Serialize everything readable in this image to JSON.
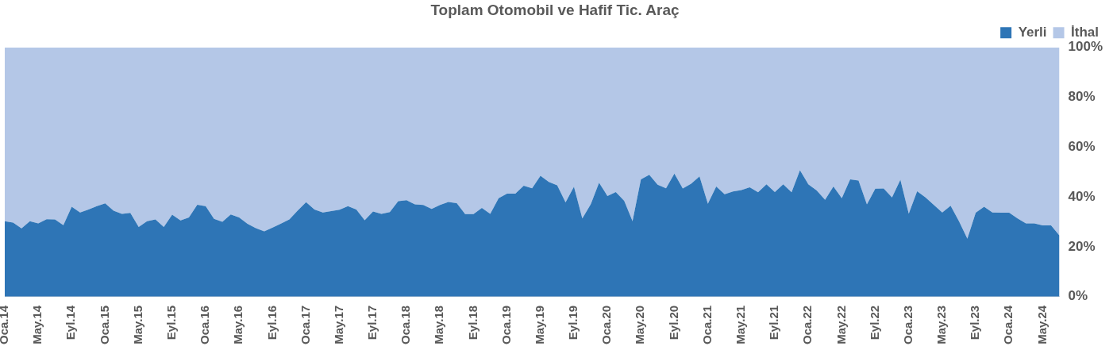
{
  "chart_data": {
    "type": "area",
    "title": "Toplam Otomobil ve Hafif Tic. Araç",
    "stacked": true,
    "legend": "top right",
    "grid": false,
    "marker": "none",
    "ylim": [
      0,
      100
    ],
    "yticks": [
      {
        "value": 0,
        "label": "0%"
      },
      {
        "value": 20,
        "label": "20%"
      },
      {
        "value": 40,
        "label": "40%"
      },
      {
        "value": 60,
        "label": "60%"
      },
      {
        "value": 80,
        "label": "80%"
      },
      {
        "value": 100,
        "label": "100%"
      }
    ],
    "categories": [
      "Oca.14",
      null,
      null,
      null,
      "May.14",
      null,
      null,
      null,
      "Eyl.14",
      null,
      null,
      null,
      "Oca.15",
      null,
      null,
      null,
      "May.15",
      null,
      null,
      null,
      "Eyl.15",
      null,
      null,
      null,
      "Oca.16",
      null,
      null,
      null,
      "May.16",
      null,
      null,
      null,
      "Eyl.16",
      null,
      null,
      null,
      "Oca.17",
      null,
      null,
      null,
      "May.17",
      null,
      null,
      null,
      "Eyl.17",
      null,
      null,
      null,
      "Oca.18",
      null,
      null,
      null,
      "May.18",
      null,
      null,
      null,
      "Eyl.18",
      null,
      null,
      null,
      "Oca.19",
      null,
      null,
      null,
      "May.19",
      null,
      null,
      null,
      "Eyl.19",
      null,
      null,
      null,
      "Oca.20",
      null,
      null,
      null,
      "May.20",
      null,
      null,
      null,
      "Eyl.20",
      null,
      null,
      null,
      "Oca.21",
      null,
      null,
      null,
      "May.21",
      null,
      null,
      null,
      "Eyl.21",
      null,
      null,
      null,
      "Oca.22",
      null,
      null,
      null,
      "May.22",
      null,
      null,
      null,
      "Eyl.22",
      null,
      null,
      null,
      "Oca.23",
      null,
      null,
      null,
      "May.23",
      null,
      null,
      null,
      "Eyl.23",
      null,
      null,
      null,
      "Oca.24",
      null,
      null,
      null,
      "May.24",
      null,
      null
    ],
    "series": [
      {
        "name": "Yerli",
        "color": "#2e75b6",
        "values": [
          30.3,
          29.7,
          27.4,
          30.3,
          29.4,
          31.1,
          31,
          28.7,
          36.1,
          33.8,
          35,
          36.3,
          37.4,
          34.5,
          33.2,
          33.6,
          28,
          30.3,
          31,
          28,
          32.9,
          30.6,
          31.8,
          36.9,
          36.3,
          31.2,
          30,
          33,
          31.8,
          29.2,
          27.5,
          26.2,
          27.7,
          29.3,
          31,
          34.6,
          37.9,
          35,
          33.8,
          34.3,
          34.9,
          36.3,
          35,
          30.7,
          34.2,
          33.2,
          33.9,
          38.3,
          38.7,
          37,
          36.8,
          35.2,
          36.8,
          38,
          37.5,
          33.1,
          33.1,
          35.6,
          33.2,
          39.5,
          41.3,
          41.3,
          44.5,
          43.5,
          48.5,
          46,
          44.7,
          37.8,
          44.1,
          31.4,
          37,
          45.7,
          40.4,
          42,
          38.5,
          30.3,
          47.1,
          48.9,
          44.9,
          43.5,
          49.4,
          43.4,
          45.3,
          48.3,
          37.3,
          44.2,
          41.1,
          42.2,
          42.8,
          43.9,
          41.9,
          45.1,
          42,
          45.1,
          41.9,
          50.7,
          45.1,
          42.6,
          38.9,
          44.2,
          39.5,
          47.1,
          46.6,
          37,
          43.3,
          43.4,
          39.8,
          46.9,
          33.3,
          42.3,
          39.8,
          36.8,
          33.8,
          36.5,
          30.3,
          23.3,
          33.7,
          36.1,
          33.8,
          33.7,
          33.7,
          31.4,
          29.4,
          29.4,
          28.6,
          28.6,
          24.5
        ]
      },
      {
        "name": "İthal",
        "color": "#b4c7e7",
        "values": [
          69.7,
          70.3,
          72.6,
          69.7,
          70.6,
          68.9,
          69,
          71.3,
          63.9,
          66.2,
          65,
          63.7,
          62.6,
          65.5,
          66.8,
          66.4,
          72,
          69.7,
          69,
          72,
          67.1,
          69.4,
          68.2,
          63.1,
          63.7,
          68.8,
          70,
          67,
          68.2,
          70.8,
          72.5,
          73.8,
          72.3,
          70.7,
          69,
          65.4,
          62.1,
          65,
          66.2,
          65.7,
          65.1,
          63.7,
          65,
          69.3,
          65.8,
          66.8,
          66.1,
          61.7,
          61.3,
          63,
          63.2,
          64.8,
          63.2,
          62,
          62.5,
          66.9,
          66.9,
          64.4,
          66.8,
          60.5,
          58.7,
          58.7,
          55.5,
          56.5,
          51.5,
          54,
          55.3,
          62.2,
          55.9,
          68.6,
          63,
          54.3,
          59.6,
          58,
          61.5,
          69.7,
          52.9,
          51.1,
          55.1,
          56.5,
          50.6,
          56.6,
          54.7,
          51.7,
          62.7,
          55.8,
          58.9,
          57.8,
          57.2,
          56.1,
          58.1,
          54.9,
          58,
          54.9,
          58.1,
          49.3,
          54.9,
          57.4,
          61.1,
          55.8,
          60.5,
          52.9,
          53.4,
          63,
          56.7,
          56.6,
          60.2,
          53.1,
          66.7,
          57.7,
          60.2,
          63.2,
          66.2,
          63.5,
          69.7,
          76.7,
          66.3,
          63.9,
          66.2,
          66.3,
          66.3,
          68.6,
          70.6,
          70.6,
          71.4,
          71.4,
          75.5
        ]
      }
    ]
  }
}
